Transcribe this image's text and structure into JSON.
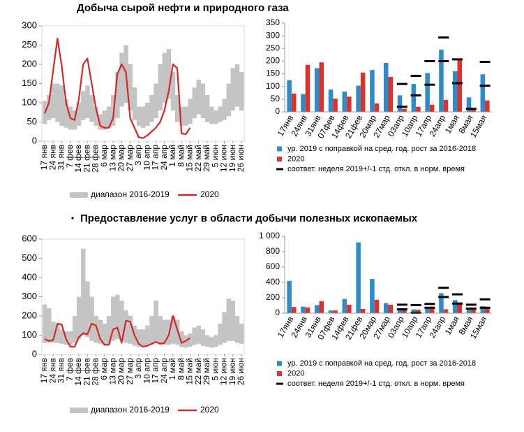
{
  "chart_data": [
    {
      "type": "line",
      "title": "Добыча сырой нефти и природного газа",
      "categories": [
        "17 янв",
        null,
        "24 янв",
        null,
        "31 янв",
        null,
        "7 фев",
        null,
        "14 фев",
        null,
        "21 фев",
        null,
        "28 фев",
        null,
        "6 мар",
        null,
        "13 мар",
        null,
        "20 мар",
        null,
        "27 мар",
        null,
        "3 апр",
        null,
        "10 апр",
        null,
        "17 апр",
        null,
        "24 апр",
        null,
        "1 май",
        null,
        "8 май",
        null,
        "15 май",
        null,
        "22 май",
        null,
        "29 май",
        null,
        "5 июн",
        null,
        "12 июн",
        null,
        "19 июн",
        null,
        "26 июн"
      ],
      "ylim": [
        0,
        300
      ],
      "yticks": [
        0,
        50,
        100,
        150,
        200,
        250,
        300
      ],
      "series": [
        {
          "name": "диапазон 2016-2019",
          "color": "#c4c4c4",
          "low": [
            45,
            55,
            60,
            50,
            40,
            35,
            30,
            30,
            40,
            55,
            60,
            50,
            40,
            30,
            30,
            35,
            40,
            60,
            90,
            100,
            80,
            55,
            40,
            35,
            40,
            50,
            60,
            80,
            100,
            110,
            80,
            50,
            40,
            40,
            45,
            60,
            70,
            60,
            50,
            45,
            45,
            50,
            55,
            65,
            80,
            90,
            80
          ],
          "high": [
            105,
            120,
            150,
            150,
            145,
            110,
            90,
            80,
            100,
            130,
            145,
            120,
            90,
            70,
            80,
            90,
            120,
            180,
            230,
            250,
            200,
            140,
            90,
            90,
            100,
            120,
            150,
            200,
            230,
            240,
            180,
            120,
            90,
            90,
            110,
            140,
            160,
            150,
            120,
            90,
            80,
            90,
            110,
            150,
            190,
            200,
            180
          ]
        },
        {
          "name": "2020",
          "color": "#d62728",
          "values": [
            72,
            100,
            185,
            267,
            195,
            100,
            60,
            55,
            110,
            200,
            215,
            150,
            85,
            40,
            35,
            35,
            60,
            175,
            200,
            180,
            60,
            35,
            10,
            8,
            15,
            25,
            35,
            50,
            80,
            130,
            200,
            190,
            20,
            18,
            35,
            null,
            null,
            null,
            null,
            null,
            null,
            null,
            null,
            null,
            null,
            null,
            null
          ]
        }
      ]
    },
    {
      "type": "bar",
      "categories": [
        "17янв",
        "24янв",
        "31янв",
        "07фев",
        "14фев",
        "21фев",
        "20мар",
        "27мар",
        "03апр",
        "10апр",
        "17апр",
        "24апр",
        "1мая",
        "8мая",
        "15мая"
      ],
      "ylim": [
        0,
        350
      ],
      "yticks": [
        0,
        50,
        100,
        150,
        200,
        250,
        300,
        350
      ],
      "series": [
        {
          "name": "ур. 2019 с поправкой на сред. год. рост за 2016-2018",
          "color": "#2e8bc9",
          "values": [
            125,
            70,
            172,
            88,
            80,
            103,
            165,
            193,
            65,
            110,
            153,
            245,
            160,
            57,
            148
          ]
        },
        {
          "name": "2020",
          "color": "#e0302a",
          "values": [
            72,
            185,
            195,
            52,
            60,
            155,
            33,
            138,
            12,
            20,
            28,
            47,
            205,
            12,
            45
          ]
        },
        {
          "name": "соответ. неделя 2019+/-1 стд. откл. в норм. время",
          "color": "#000000",
          "values": [
            null,
            null,
            null,
            null,
            null,
            null,
            null,
            null,
            [
              20,
              110
            ],
            [
              65,
              142
            ],
            [
              107,
              200
            ],
            [
              200,
              293
            ],
            [
              113,
              207
            ],
            [
              12,
              null
            ],
            [
              103,
              197
            ]
          ]
        }
      ]
    },
    {
      "type": "line",
      "title": "Предоставление услуг в области добычи полезных ископаемых",
      "categories": [
        "17 янв",
        null,
        "24 янв",
        null,
        "31 янв",
        null,
        "7 фев",
        null,
        "14 фев",
        null,
        "21 фев",
        null,
        "28 фев",
        null,
        "6 мар",
        null,
        "13 мар",
        null,
        "20 мар",
        null,
        "27 мар",
        null,
        "3 апр",
        null,
        "10 апр",
        null,
        "17 апр",
        null,
        "24 апр",
        null,
        "1 май",
        null,
        "8 май",
        null,
        "15 май",
        null,
        "22 май",
        null,
        "29 май",
        null,
        "5 июн",
        null,
        "12 июн",
        null,
        "19 июн",
        null,
        "26 июн"
      ],
      "ylim": [
        0,
        600
      ],
      "yticks": [
        0,
        100,
        200,
        300,
        400,
        500,
        600
      ],
      "series": [
        {
          "name": "диапазон 2016-2019",
          "color": "#c4c4c4",
          "low": [
            60,
            60,
            60,
            60,
            55,
            50,
            50,
            60,
            80,
            100,
            90,
            70,
            60,
            55,
            50,
            55,
            70,
            80,
            70,
            60,
            55,
            45,
            40,
            40,
            45,
            50,
            60,
            55,
            50,
            50,
            55,
            50,
            40,
            35,
            40,
            50,
            55,
            45,
            40,
            35,
            40,
            50,
            60,
            70,
            70,
            60,
            55
          ],
          "high": [
            260,
            240,
            170,
            160,
            130,
            120,
            120,
            200,
            300,
            550,
            380,
            300,
            200,
            180,
            160,
            200,
            300,
            310,
            280,
            230,
            200,
            150,
            130,
            130,
            150,
            200,
            280,
            200,
            180,
            180,
            200,
            180,
            120,
            100,
            110,
            140,
            150,
            130,
            100,
            90,
            100,
            160,
            220,
            290,
            280,
            200,
            160
          ]
        },
        {
          "name": "2020",
          "color": "#d62728",
          "values": [
            80,
            70,
            75,
            160,
            155,
            80,
            40,
            40,
            90,
            110,
            105,
            160,
            150,
            80,
            50,
            50,
            130,
            140,
            60,
            175,
            170,
            100,
            55,
            40,
            45,
            55,
            65,
            55,
            60,
            100,
            200,
            130,
            60,
            70,
            85,
            null,
            null,
            null,
            null,
            null,
            null,
            null,
            null,
            null,
            null,
            null,
            null
          ]
        }
      ]
    },
    {
      "type": "bar",
      "categories": [
        "17янв",
        "24янв",
        "31янв",
        "07фев",
        "14фев",
        "21фев",
        "20мар",
        "27мар",
        "03апр",
        "10апр",
        "17апр",
        "24апр",
        "1мая",
        "8мая",
        "15мая"
      ],
      "ylim": [
        0,
        1000
      ],
      "yticks": [
        0,
        200,
        400,
        600,
        800,
        {
          "value": 1000,
          "label": "1 000"
        }
      ],
      "series": [
        {
          "name": "ур. 2019 с поправкой на сред. год. рост за 2016-2018",
          "color": "#2e8bc9",
          "values": [
            420,
            85,
            105,
            35,
            185,
            920,
            445,
            130,
            45,
            50,
            55,
            260,
            170,
            45,
            90
          ]
        },
        {
          "name": "2020",
          "color": "#e0302a",
          "values": [
            80,
            75,
            155,
            35,
            110,
            55,
            175,
            110,
            50,
            45,
            85,
            50,
            140,
            60,
            65
          ]
        },
        {
          "name": "соответ. неделя 2019+/-1 стд. откл. в норм. время",
          "color": "#000000",
          "values": [
            null,
            null,
            null,
            null,
            null,
            null,
            null,
            null,
            [
              50,
              110
            ],
            [
              5,
              105
            ],
            [
              70,
              120
            ],
            [
              210,
              330
            ],
            [
              125,
              245
            ],
            [
              60,
              110
            ],
            [
              70,
              180
            ]
          ]
        }
      ]
    }
  ]
}
